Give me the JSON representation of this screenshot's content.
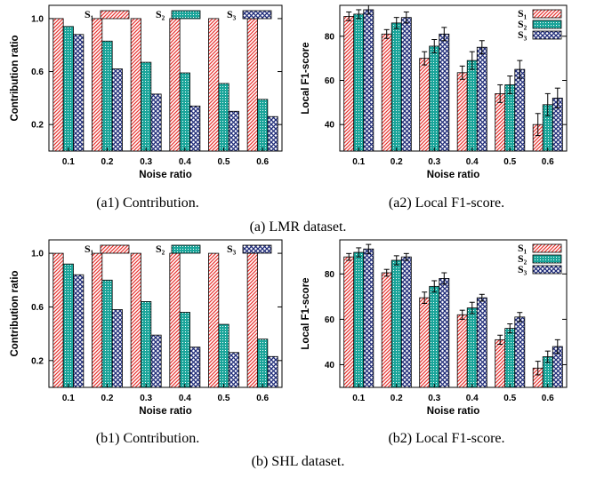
{
  "colors": {
    "s1": "#e8322e",
    "s2": "#1aa59a",
    "s3": "#1d2a78"
  },
  "legend": [
    "S₁",
    "S₂",
    "S₃"
  ],
  "chart_data": [
    {
      "id": "a1",
      "type": "bar",
      "categories": [
        "0.1",
        "0.2",
        "0.3",
        "0.4",
        "0.5",
        "0.6"
      ],
      "xlabel": "Noise ratio",
      "ylabel": "Contribution ratio",
      "ylim": [
        0,
        1.1
      ],
      "yticks": [
        "0.2",
        "0.6",
        "1.0"
      ],
      "legend_position": "top",
      "series": [
        {
          "name": "S₁",
          "values": [
            1.0,
            1.0,
            1.0,
            1.0,
            1.0,
            1.0
          ]
        },
        {
          "name": "S₂",
          "values": [
            0.94,
            0.83,
            0.67,
            0.59,
            0.51,
            0.39
          ]
        },
        {
          "name": "S₃",
          "values": [
            0.88,
            0.62,
            0.43,
            0.34,
            0.3,
            0.26
          ]
        }
      ],
      "caption": "(a1) Contribution."
    },
    {
      "id": "a2",
      "type": "bar",
      "categories": [
        "0.1",
        "0.2",
        "0.3",
        "0.4",
        "0.5",
        "0.6"
      ],
      "xlabel": "Noise ratio",
      "ylabel": "Local F1-score",
      "ylim": [
        28,
        94
      ],
      "yticks": [
        "40",
        "60",
        "80"
      ],
      "legend_position": "top-right",
      "series": [
        {
          "name": "S₁",
          "values": [
            89,
            81,
            70,
            63.5,
            54,
            40
          ],
          "errors": [
            2,
            2,
            3,
            3,
            4,
            5
          ]
        },
        {
          "name": "S₂",
          "values": [
            90,
            86,
            75.5,
            69,
            58,
            49
          ],
          "errors": [
            2,
            2.5,
            3,
            4,
            4,
            5
          ]
        },
        {
          "name": "S₃",
          "values": [
            92,
            88.5,
            81,
            75,
            65,
            52
          ],
          "errors": [
            2,
            2.5,
            3,
            3,
            4,
            4.5
          ]
        }
      ],
      "caption": "(a2) Local F1-score."
    },
    {
      "id": "b1",
      "type": "bar",
      "categories": [
        "0.1",
        "0.2",
        "0.3",
        "0.4",
        "0.5",
        "0.6"
      ],
      "xlabel": "Noise ratio",
      "ylabel": "Contribution ratio",
      "ylim": [
        0,
        1.1
      ],
      "yticks": [
        "0.2",
        "0.6",
        "1.0"
      ],
      "legend_position": "top",
      "series": [
        {
          "name": "S₁",
          "values": [
            1.0,
            1.0,
            1.0,
            1.0,
            1.0,
            1.0
          ]
        },
        {
          "name": "S₂",
          "values": [
            0.92,
            0.8,
            0.64,
            0.56,
            0.47,
            0.36
          ]
        },
        {
          "name": "S₃",
          "values": [
            0.84,
            0.58,
            0.39,
            0.3,
            0.26,
            0.23
          ]
        }
      ],
      "caption": "(b1) Contribution."
    },
    {
      "id": "b2",
      "type": "bar",
      "categories": [
        "0.1",
        "0.2",
        "0.3",
        "0.4",
        "0.5",
        "0.6"
      ],
      "xlabel": "Noise ratio",
      "ylabel": "Local F1-score",
      "ylim": [
        30,
        95
      ],
      "yticks": [
        "40",
        "60",
        "80"
      ],
      "legend_position": "top-right",
      "series": [
        {
          "name": "S₁",
          "values": [
            87.5,
            80.5,
            69.5,
            62,
            51,
            38.5
          ],
          "errors": [
            1.5,
            1.5,
            2.5,
            2,
            2,
            3
          ]
        },
        {
          "name": "S₂",
          "values": [
            89.5,
            86,
            74.5,
            65,
            56,
            43.5
          ],
          "errors": [
            2,
            2,
            2.5,
            2.5,
            2,
            2.5
          ]
        },
        {
          "name": "S₃",
          "values": [
            91,
            87.5,
            78,
            69.5,
            61,
            48
          ],
          "errors": [
            2,
            1.5,
            2.5,
            1.5,
            2,
            3
          ]
        }
      ],
      "caption": "(b2) Local F1-score."
    }
  ],
  "captions": {
    "a": "(a) LMR dataset.",
    "b": "(b) SHL dataset."
  }
}
